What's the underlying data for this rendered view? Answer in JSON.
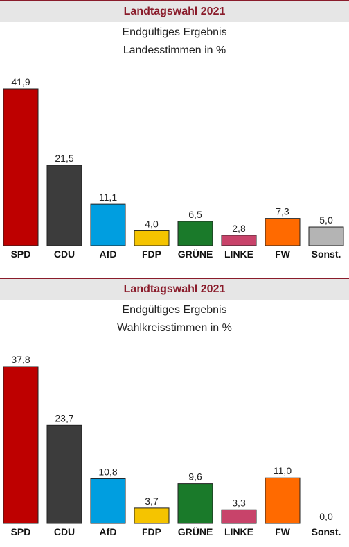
{
  "chart_data": [
    {
      "type": "bar",
      "title": "Landtagswahl 2021",
      "subtitle_lines": [
        "Endgültiges Ergebnis",
        "Landesstimmen in %"
      ],
      "categories": [
        "SPD",
        "CDU",
        "AfD",
        "FDP",
        "GRÜNE",
        "LINKE",
        "FW",
        "Sonst."
      ],
      "values": [
        41.9,
        21.5,
        11.1,
        4.0,
        6.5,
        2.8,
        7.3,
        5.0
      ],
      "value_labels": [
        "41,9",
        "21,5",
        "11,1",
        "4,0",
        "6,5",
        "2,8",
        "7,3",
        "5,0"
      ],
      "colors": [
        "#be0000",
        "#3c3c3c",
        "#009ee0",
        "#f5c400",
        "#1a7a2a",
        "#c8436a",
        "#ff6a00",
        "#b4b4b4"
      ],
      "ylim": [
        0,
        41.9
      ],
      "grid": false
    },
    {
      "type": "bar",
      "title": "Landtagswahl 2021",
      "subtitle_lines": [
        "Endgültiges Ergebnis",
        "Wahlkreisstimmen in %"
      ],
      "categories": [
        "SPD",
        "CDU",
        "AfD",
        "FDP",
        "GRÜNE",
        "LINKE",
        "FW",
        "Sonst."
      ],
      "values": [
        37.8,
        23.7,
        10.8,
        3.7,
        9.6,
        3.3,
        11.0,
        0.0
      ],
      "value_labels": [
        "37,8",
        "23,7",
        "10,8",
        "3,7",
        "9,6",
        "3,3",
        "11,0",
        "0,0"
      ],
      "colors": [
        "#be0000",
        "#3c3c3c",
        "#009ee0",
        "#f5c400",
        "#1a7a2a",
        "#c8436a",
        "#ff6a00",
        "#b4b4b4"
      ],
      "ylim": [
        0,
        37.8
      ],
      "grid": false
    }
  ]
}
